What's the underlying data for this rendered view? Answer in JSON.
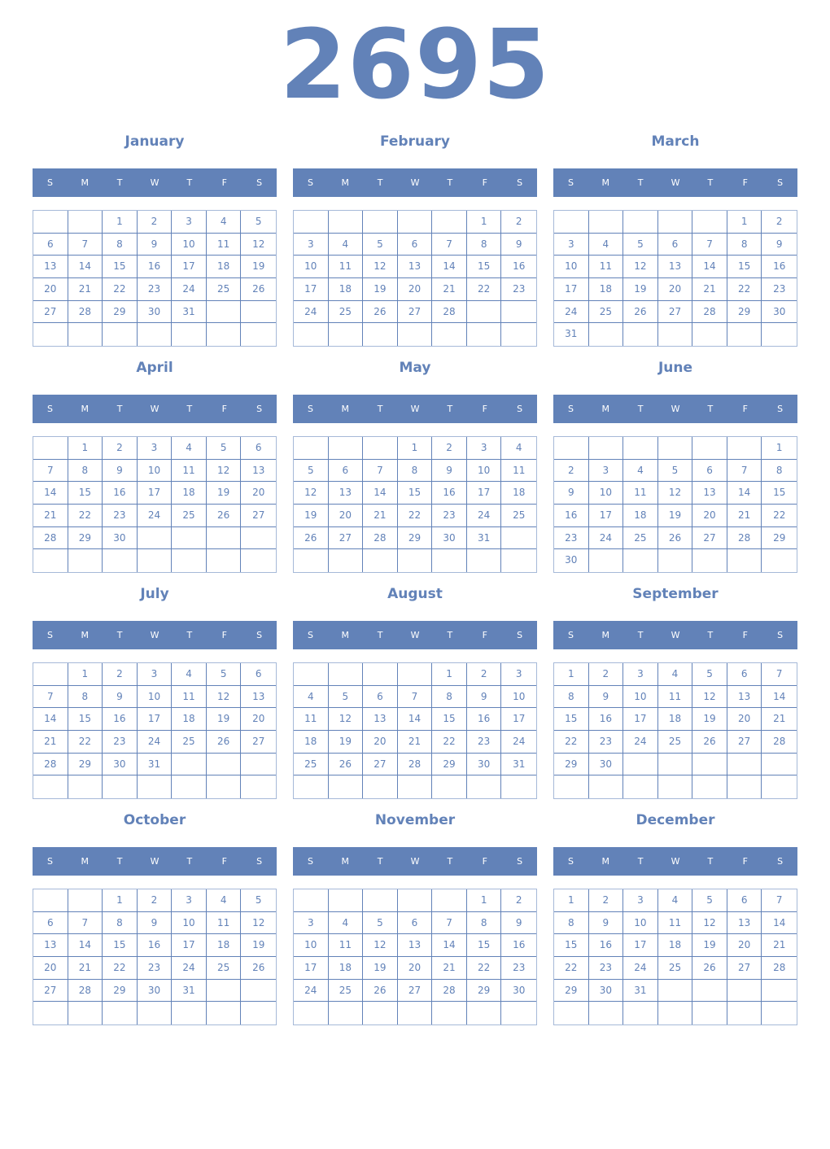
{
  "year": "2695",
  "weekdays": [
    "S",
    "M",
    "T",
    "W",
    "T",
    "F",
    "S"
  ],
  "months": [
    {
      "name": "January",
      "weeks": [
        [
          null,
          null,
          1,
          2,
          3,
          4,
          5
        ],
        [
          6,
          7,
          8,
          9,
          10,
          11,
          12
        ],
        [
          13,
          14,
          15,
          16,
          17,
          18,
          19
        ],
        [
          20,
          21,
          22,
          23,
          24,
          25,
          26
        ],
        [
          27,
          28,
          29,
          30,
          31,
          null,
          null
        ],
        [
          null,
          null,
          null,
          null,
          null,
          null,
          null
        ]
      ]
    },
    {
      "name": "February",
      "weeks": [
        [
          null,
          null,
          null,
          null,
          null,
          1,
          2
        ],
        [
          3,
          4,
          5,
          6,
          7,
          8,
          9
        ],
        [
          10,
          11,
          12,
          13,
          14,
          15,
          16
        ],
        [
          17,
          18,
          19,
          20,
          21,
          22,
          23
        ],
        [
          24,
          25,
          26,
          27,
          28,
          null,
          null
        ],
        [
          null,
          null,
          null,
          null,
          null,
          null,
          null
        ]
      ]
    },
    {
      "name": "March",
      "weeks": [
        [
          null,
          null,
          null,
          null,
          null,
          1,
          2
        ],
        [
          3,
          4,
          5,
          6,
          7,
          8,
          9
        ],
        [
          10,
          11,
          12,
          13,
          14,
          15,
          16
        ],
        [
          17,
          18,
          19,
          20,
          21,
          22,
          23
        ],
        [
          24,
          25,
          26,
          27,
          28,
          29,
          30
        ],
        [
          31,
          null,
          null,
          null,
          null,
          null,
          null
        ]
      ]
    },
    {
      "name": "April",
      "weeks": [
        [
          null,
          1,
          2,
          3,
          4,
          5,
          6
        ],
        [
          7,
          8,
          9,
          10,
          11,
          12,
          13
        ],
        [
          14,
          15,
          16,
          17,
          18,
          19,
          20
        ],
        [
          21,
          22,
          23,
          24,
          25,
          26,
          27
        ],
        [
          28,
          29,
          30,
          null,
          null,
          null,
          null
        ],
        [
          null,
          null,
          null,
          null,
          null,
          null,
          null
        ]
      ]
    },
    {
      "name": "May",
      "weeks": [
        [
          null,
          null,
          null,
          1,
          2,
          3,
          4
        ],
        [
          5,
          6,
          7,
          8,
          9,
          10,
          11
        ],
        [
          12,
          13,
          14,
          15,
          16,
          17,
          18
        ],
        [
          19,
          20,
          21,
          22,
          23,
          24,
          25
        ],
        [
          26,
          27,
          28,
          29,
          30,
          31,
          null
        ],
        [
          null,
          null,
          null,
          null,
          null,
          null,
          null
        ]
      ]
    },
    {
      "name": "June",
      "weeks": [
        [
          null,
          null,
          null,
          null,
          null,
          null,
          1
        ],
        [
          2,
          3,
          4,
          5,
          6,
          7,
          8
        ],
        [
          9,
          10,
          11,
          12,
          13,
          14,
          15
        ],
        [
          16,
          17,
          18,
          19,
          20,
          21,
          22
        ],
        [
          23,
          24,
          25,
          26,
          27,
          28,
          29
        ],
        [
          30,
          null,
          null,
          null,
          null,
          null,
          null
        ]
      ]
    },
    {
      "name": "July",
      "weeks": [
        [
          null,
          1,
          2,
          3,
          4,
          5,
          6
        ],
        [
          7,
          8,
          9,
          10,
          11,
          12,
          13
        ],
        [
          14,
          15,
          16,
          17,
          18,
          19,
          20
        ],
        [
          21,
          22,
          23,
          24,
          25,
          26,
          27
        ],
        [
          28,
          29,
          30,
          31,
          null,
          null,
          null
        ],
        [
          null,
          null,
          null,
          null,
          null,
          null,
          null
        ]
      ]
    },
    {
      "name": "August",
      "weeks": [
        [
          null,
          null,
          null,
          null,
          1,
          2,
          3
        ],
        [
          4,
          5,
          6,
          7,
          8,
          9,
          10
        ],
        [
          11,
          12,
          13,
          14,
          15,
          16,
          17
        ],
        [
          18,
          19,
          20,
          21,
          22,
          23,
          24
        ],
        [
          25,
          26,
          27,
          28,
          29,
          30,
          31
        ],
        [
          null,
          null,
          null,
          null,
          null,
          null,
          null
        ]
      ]
    },
    {
      "name": "September",
      "weeks": [
        [
          1,
          2,
          3,
          4,
          5,
          6,
          7
        ],
        [
          8,
          9,
          10,
          11,
          12,
          13,
          14
        ],
        [
          15,
          16,
          17,
          18,
          19,
          20,
          21
        ],
        [
          22,
          23,
          24,
          25,
          26,
          27,
          28
        ],
        [
          29,
          30,
          null,
          null,
          null,
          null,
          null
        ],
        [
          null,
          null,
          null,
          null,
          null,
          null,
          null
        ]
      ]
    },
    {
      "name": "October",
      "weeks": [
        [
          null,
          null,
          1,
          2,
          3,
          4,
          5
        ],
        [
          6,
          7,
          8,
          9,
          10,
          11,
          12
        ],
        [
          13,
          14,
          15,
          16,
          17,
          18,
          19
        ],
        [
          20,
          21,
          22,
          23,
          24,
          25,
          26
        ],
        [
          27,
          28,
          29,
          30,
          31,
          null,
          null
        ],
        [
          null,
          null,
          null,
          null,
          null,
          null,
          null
        ]
      ]
    },
    {
      "name": "November",
      "weeks": [
        [
          null,
          null,
          null,
          null,
          null,
          1,
          2
        ],
        [
          3,
          4,
          5,
          6,
          7,
          8,
          9
        ],
        [
          10,
          11,
          12,
          13,
          14,
          15,
          16
        ],
        [
          17,
          18,
          19,
          20,
          21,
          22,
          23
        ],
        [
          24,
          25,
          26,
          27,
          28,
          29,
          30
        ],
        [
          null,
          null,
          null,
          null,
          null,
          null,
          null
        ]
      ]
    },
    {
      "name": "December",
      "weeks": [
        [
          1,
          2,
          3,
          4,
          5,
          6,
          7
        ],
        [
          8,
          9,
          10,
          11,
          12,
          13,
          14
        ],
        [
          15,
          16,
          17,
          18,
          19,
          20,
          21
        ],
        [
          22,
          23,
          24,
          25,
          26,
          27,
          28
        ],
        [
          29,
          30,
          31,
          null,
          null,
          null,
          null
        ],
        [
          null,
          null,
          null,
          null,
          null,
          null,
          null
        ]
      ]
    }
  ],
  "colors": {
    "accent": "#6282b8",
    "outer_border": "#a6b9d8",
    "header_text": "#ffffff"
  }
}
